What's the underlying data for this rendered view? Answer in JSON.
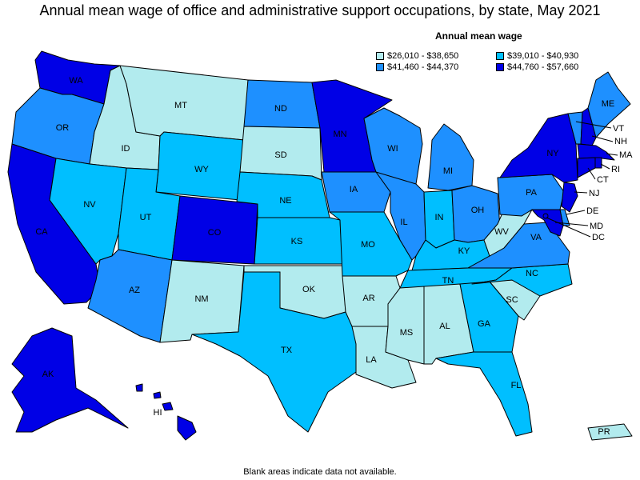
{
  "title": "Annual mean wage of office and administrative support occupations, by state, May 2021",
  "legend": {
    "title": "Annual mean wage",
    "items": [
      {
        "label": "$26,010 - $38,650",
        "color": "#b2ebee"
      },
      {
        "label": "$39,010 - $40,930",
        "color": "#00bfff"
      },
      {
        "label": "$41,460 - $44,370",
        "color": "#1e90ff"
      },
      {
        "label": "$44,760 - $57,660",
        "color": "#0000e6"
      }
    ]
  },
  "footnote": "Blank areas indicate data not available.",
  "states": [
    {
      "abbr": "WA",
      "bin": 3
    },
    {
      "abbr": "OR",
      "bin": 2
    },
    {
      "abbr": "CA",
      "bin": 3
    },
    {
      "abbr": "ID",
      "bin": 0
    },
    {
      "abbr": "NV",
      "bin": 1
    },
    {
      "abbr": "MT",
      "bin": 0
    },
    {
      "abbr": "WY",
      "bin": 1
    },
    {
      "abbr": "UT",
      "bin": 1
    },
    {
      "abbr": "AZ",
      "bin": 2
    },
    {
      "abbr": "CO",
      "bin": 3
    },
    {
      "abbr": "NM",
      "bin": 0
    },
    {
      "abbr": "ND",
      "bin": 2
    },
    {
      "abbr": "SD",
      "bin": 0
    },
    {
      "abbr": "NE",
      "bin": 1
    },
    {
      "abbr": "KS",
      "bin": 1
    },
    {
      "abbr": "OK",
      "bin": 0
    },
    {
      "abbr": "TX",
      "bin": 1
    },
    {
      "abbr": "MN",
      "bin": 3
    },
    {
      "abbr": "IA",
      "bin": 2
    },
    {
      "abbr": "MO",
      "bin": 1
    },
    {
      "abbr": "AR",
      "bin": 0
    },
    {
      "abbr": "LA",
      "bin": 0
    },
    {
      "abbr": "WI",
      "bin": 2
    },
    {
      "abbr": "IL",
      "bin": 2
    },
    {
      "abbr": "MI",
      "bin": 2
    },
    {
      "abbr": "IN",
      "bin": 1
    },
    {
      "abbr": "OH",
      "bin": 2
    },
    {
      "abbr": "KY",
      "bin": 1
    },
    {
      "abbr": "TN",
      "bin": 1
    },
    {
      "abbr": "MS",
      "bin": 0
    },
    {
      "abbr": "AL",
      "bin": 0
    },
    {
      "abbr": "GA",
      "bin": 1
    },
    {
      "abbr": "FL",
      "bin": 1
    },
    {
      "abbr": "SC",
      "bin": 0
    },
    {
      "abbr": "NC",
      "bin": 1
    },
    {
      "abbr": "VA",
      "bin": 2
    },
    {
      "abbr": "WV",
      "bin": 0
    },
    {
      "abbr": "PA",
      "bin": 2
    },
    {
      "abbr": "NY",
      "bin": 3
    },
    {
      "abbr": "VT",
      "bin": 2
    },
    {
      "abbr": "NH",
      "bin": 3
    },
    {
      "abbr": "ME",
      "bin": 2
    },
    {
      "abbr": "MA",
      "bin": 3
    },
    {
      "abbr": "RI",
      "bin": 3
    },
    {
      "abbr": "CT",
      "bin": 3
    },
    {
      "abbr": "NJ",
      "bin": 3
    },
    {
      "abbr": "DE",
      "bin": 2
    },
    {
      "abbr": "MD",
      "bin": 3
    },
    {
      "abbr": "DC",
      "bin": 3
    },
    {
      "abbr": "AK",
      "bin": 3
    },
    {
      "abbr": "HI",
      "bin": 3
    },
    {
      "abbr": "PR",
      "bin": 0
    }
  ]
}
